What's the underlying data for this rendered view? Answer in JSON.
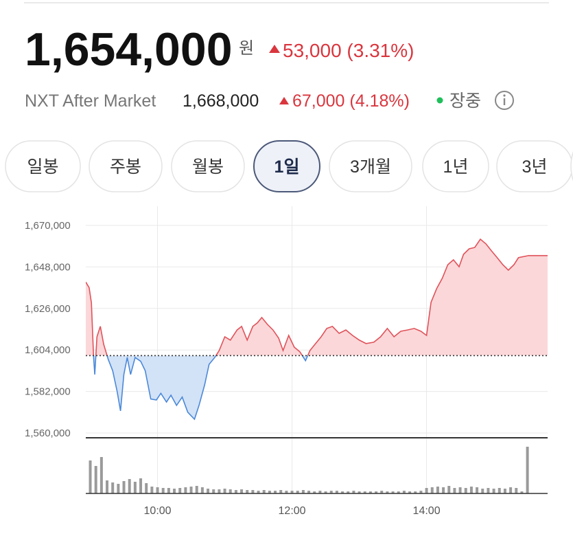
{
  "header": {
    "price": "1,654,000",
    "unit": "원",
    "change": "53,000 (3.31%)",
    "nxt_label": "NXT After Market",
    "nxt_price": "1,668,000",
    "nxt_change": "67,000 (4.18%)",
    "status": "장중"
  },
  "tabs": [
    "일봉",
    "주봉",
    "월봉",
    "1일",
    "3개월",
    "1년",
    "3년"
  ],
  "selected_tab": 3,
  "chart_data": [
    {
      "type": "area",
      "color_above": "#e0525a",
      "color_below": "#4a88d8",
      "fill_above": "#fbd7d9",
      "fill_below": "#d2e2f7",
      "reference_line": 1601000,
      "x": [
        "08:56",
        "08:59",
        "09:01",
        "09:03",
        "09:04",
        "09:06",
        "09:09",
        "09:12",
        "09:16",
        "09:20",
        "09:24",
        "09:27",
        "09:30",
        "09:33",
        "09:36",
        "09:40",
        "09:45",
        "09:49",
        "09:54",
        "09:59",
        "10:03",
        "10:08",
        "10:12",
        "10:17",
        "10:22",
        "10:27",
        "10:33",
        "10:37",
        "10:42",
        "10:46",
        "10:51",
        "10:55",
        "11:00",
        "11:05",
        "11:11",
        "11:15",
        "11:20",
        "11:25",
        "11:29",
        "11:33",
        "11:38",
        "11:43",
        "11:48",
        "11:52",
        "11:57",
        "12:02",
        "12:07",
        "12:12",
        "12:16",
        "12:21",
        "12:26",
        "12:31",
        "12:36",
        "12:42",
        "12:48",
        "12:54",
        "13:00",
        "13:06",
        "13:13",
        "13:19",
        "13:25",
        "13:31",
        "13:37",
        "13:43",
        "13:49",
        "13:55",
        "14:00",
        "14:04",
        "14:09",
        "14:14",
        "14:19",
        "14:24",
        "14:29",
        "14:33",
        "14:38",
        "14:43",
        "14:48",
        "14:53",
        "14:58",
        "15:03",
        "15:08",
        "15:13",
        "15:18",
        "15:22",
        "15:31",
        "15:48"
      ],
      "values": [
        1640000,
        1637000,
        1629000,
        1600000,
        1591000,
        1611000,
        1616500,
        1607000,
        1599000,
        1593000,
        1582000,
        1571700,
        1591000,
        1600000,
        1591000,
        1600000,
        1598000,
        1593000,
        1578000,
        1577500,
        1581000,
        1576400,
        1580000,
        1574600,
        1579000,
        1571000,
        1567300,
        1574600,
        1585500,
        1596400,
        1600000,
        1603700,
        1611000,
        1609200,
        1614600,
        1616500,
        1609200,
        1616500,
        1618300,
        1621200,
        1617600,
        1614600,
        1610300,
        1603700,
        1611700,
        1605500,
        1603000,
        1598300,
        1603700,
        1607400,
        1611000,
        1615400,
        1616500,
        1612800,
        1614600,
        1611700,
        1609200,
        1607400,
        1608100,
        1611000,
        1615400,
        1611000,
        1613900,
        1614600,
        1615400,
        1613900,
        1611700,
        1629200,
        1636500,
        1642000,
        1649200,
        1651800,
        1648100,
        1654700,
        1657600,
        1658300,
        1662700,
        1660200,
        1656500,
        1652900,
        1649200,
        1646300,
        1649200,
        1652900,
        1654000,
        1654000
      ],
      "xlim": [
        "08:56",
        "15:48"
      ],
      "xticks": [
        "10:00",
        "12:00",
        "14:00"
      ],
      "ylim": [
        1560000,
        1670000
      ],
      "yticks": [
        {
          "value": 1560000,
          "label": "1,560,000"
        },
        {
          "value": 1582000,
          "label": "1,582,000"
        },
        {
          "value": 1604000,
          "label": "1,604,000"
        },
        {
          "value": 1626000,
          "label": "1,626,000"
        },
        {
          "value": 1648000,
          "label": "1,648,000"
        },
        {
          "value": 1670000,
          "label": "1,670,000"
        }
      ],
      "grid": true
    },
    {
      "type": "bar",
      "color": "#9a9a9a",
      "x": [
        "09:00",
        "09:05",
        "09:10",
        "09:15",
        "09:20",
        "09:25",
        "09:30",
        "09:35",
        "09:40",
        "09:45",
        "09:50",
        "09:55",
        "10:00",
        "10:05",
        "10:10",
        "10:15",
        "10:20",
        "10:25",
        "10:30",
        "10:35",
        "10:40",
        "10:45",
        "10:50",
        "10:55",
        "11:00",
        "11:05",
        "11:10",
        "11:15",
        "11:20",
        "11:25",
        "11:30",
        "11:35",
        "11:40",
        "11:45",
        "11:50",
        "11:55",
        "12:00",
        "12:05",
        "12:10",
        "12:15",
        "12:20",
        "12:25",
        "12:30",
        "12:35",
        "12:40",
        "12:45",
        "12:50",
        "12:55",
        "13:00",
        "13:05",
        "13:10",
        "13:15",
        "13:20",
        "13:25",
        "13:30",
        "13:35",
        "13:40",
        "13:45",
        "13:50",
        "13:55",
        "14:00",
        "14:05",
        "14:10",
        "14:15",
        "14:20",
        "14:25",
        "14:30",
        "14:35",
        "14:40",
        "14:45",
        "14:50",
        "14:55",
        "15:00",
        "15:05",
        "15:10",
        "15:15",
        "15:20",
        "15:25",
        "15:30"
      ],
      "values": [
        48,
        40,
        53,
        19,
        16,
        14,
        18,
        21,
        17,
        22,
        15,
        10,
        9,
        8,
        8,
        7,
        8,
        9,
        10,
        11,
        9,
        7,
        6,
        6,
        7,
        6,
        5,
        6,
        5,
        5,
        4,
        5,
        4,
        4,
        5,
        4,
        4,
        4,
        5,
        4,
        3,
        4,
        3,
        4,
        4,
        3,
        3,
        4,
        3,
        3,
        3,
        3,
        4,
        3,
        3,
        3,
        4,
        3,
        3,
        4,
        8,
        9,
        10,
        9,
        11,
        8,
        9,
        8,
        10,
        9,
        7,
        8,
        7,
        8,
        7,
        9,
        8,
        3,
        68
      ],
      "xlim": [
        "08:56",
        "15:48"
      ],
      "ylim": [
        0,
        72
      ]
    }
  ]
}
